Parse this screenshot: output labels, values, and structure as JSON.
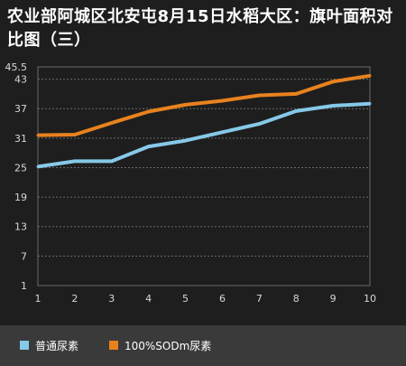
{
  "chart_data": {
    "type": "line",
    "title": "农业部阿城区北安屯8月15日水稻大区：旗叶面积对比图（三）",
    "x": [
      1,
      2,
      3,
      4,
      5,
      6,
      7,
      8,
      9,
      10
    ],
    "x_tick_labels": [
      "1",
      "2",
      "3",
      "4",
      "5",
      "6",
      "7",
      "8",
      "9",
      "10"
    ],
    "y_tick_labels": [
      "1",
      "7",
      "13",
      "19",
      "25",
      "31",
      "37",
      "43",
      "45.5"
    ],
    "y_ticks": [
      1,
      7,
      13,
      19,
      25,
      31,
      37,
      43,
      45.5
    ],
    "ylim": [
      1,
      45.5
    ],
    "xlabel": "",
    "ylabel": "",
    "grid": true,
    "legend_position": "bottom-left",
    "series": [
      {
        "name": "普通尿素",
        "color": "#86c9e8",
        "values": [
          25.2,
          26.3,
          26.3,
          29.3,
          30.5,
          32.2,
          33.9,
          36.5,
          37.6,
          38.0
        ]
      },
      {
        "name": "100%SODm尿素",
        "color": "#e8821e",
        "values": [
          31.6,
          31.7,
          34.1,
          36.4,
          37.8,
          38.6,
          39.7,
          40.0,
          42.5,
          43.7
        ]
      }
    ]
  },
  "colors": {
    "background": "#1e1e1e",
    "gridline": "#6a6a6a",
    "axis_text": "#d8d8d8",
    "legend_bg": "#3a3a3a"
  }
}
